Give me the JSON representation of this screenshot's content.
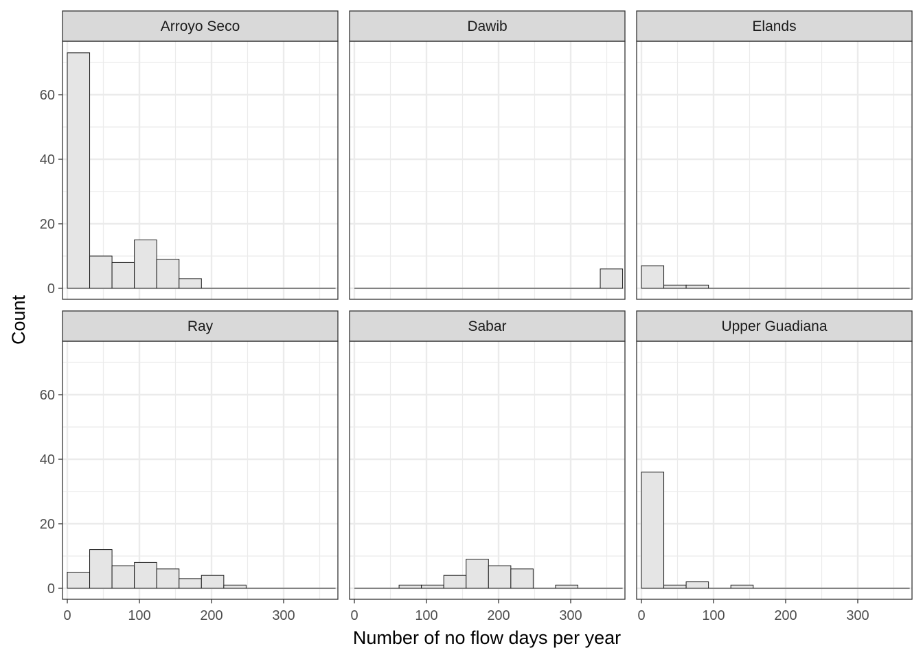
{
  "chart_data": {
    "type": "bar",
    "layout": "facet-grid 2x3",
    "xlabel": "Number of no flow days per year",
    "ylabel": "Count",
    "xlim": [
      0,
      370
    ],
    "ylim": [
      0,
      73
    ],
    "x_ticks": [
      0,
      100,
      200,
      300
    ],
    "y_ticks": [
      0,
      20,
      40,
      60
    ],
    "bin_edges": [
      0,
      31,
      62,
      93,
      124,
      155,
      186,
      217,
      248,
      279,
      310,
      341,
      372
    ],
    "grid": true,
    "colors": {
      "bar_fill": "#e5e5e5",
      "bar_stroke": "#1a1a1a",
      "strip_fill": "#d9d9d9",
      "grid": "#ebebeb"
    },
    "panels": [
      {
        "title": "Arroyo Seco",
        "counts": [
          73,
          10,
          8,
          15,
          9,
          3,
          0,
          0,
          0,
          0,
          0,
          0
        ]
      },
      {
        "title": "Dawib",
        "counts": [
          0,
          0,
          0,
          0,
          0,
          0,
          0,
          0,
          0,
          0,
          0,
          6
        ]
      },
      {
        "title": "Elands",
        "counts": [
          7,
          1,
          1,
          0,
          0,
          0,
          0,
          0,
          0,
          0,
          0,
          0
        ]
      },
      {
        "title": "Ray",
        "counts": [
          5,
          12,
          7,
          8,
          6,
          3,
          4,
          1,
          0,
          0,
          0,
          0
        ]
      },
      {
        "title": "Sabar",
        "counts": [
          0,
          0,
          1,
          1,
          4,
          9,
          7,
          6,
          0,
          1,
          0,
          0
        ]
      },
      {
        "title": "Upper Guadiana",
        "counts": [
          36,
          1,
          2,
          0,
          1,
          0,
          0,
          0,
          0,
          0,
          0,
          0
        ]
      }
    ]
  }
}
